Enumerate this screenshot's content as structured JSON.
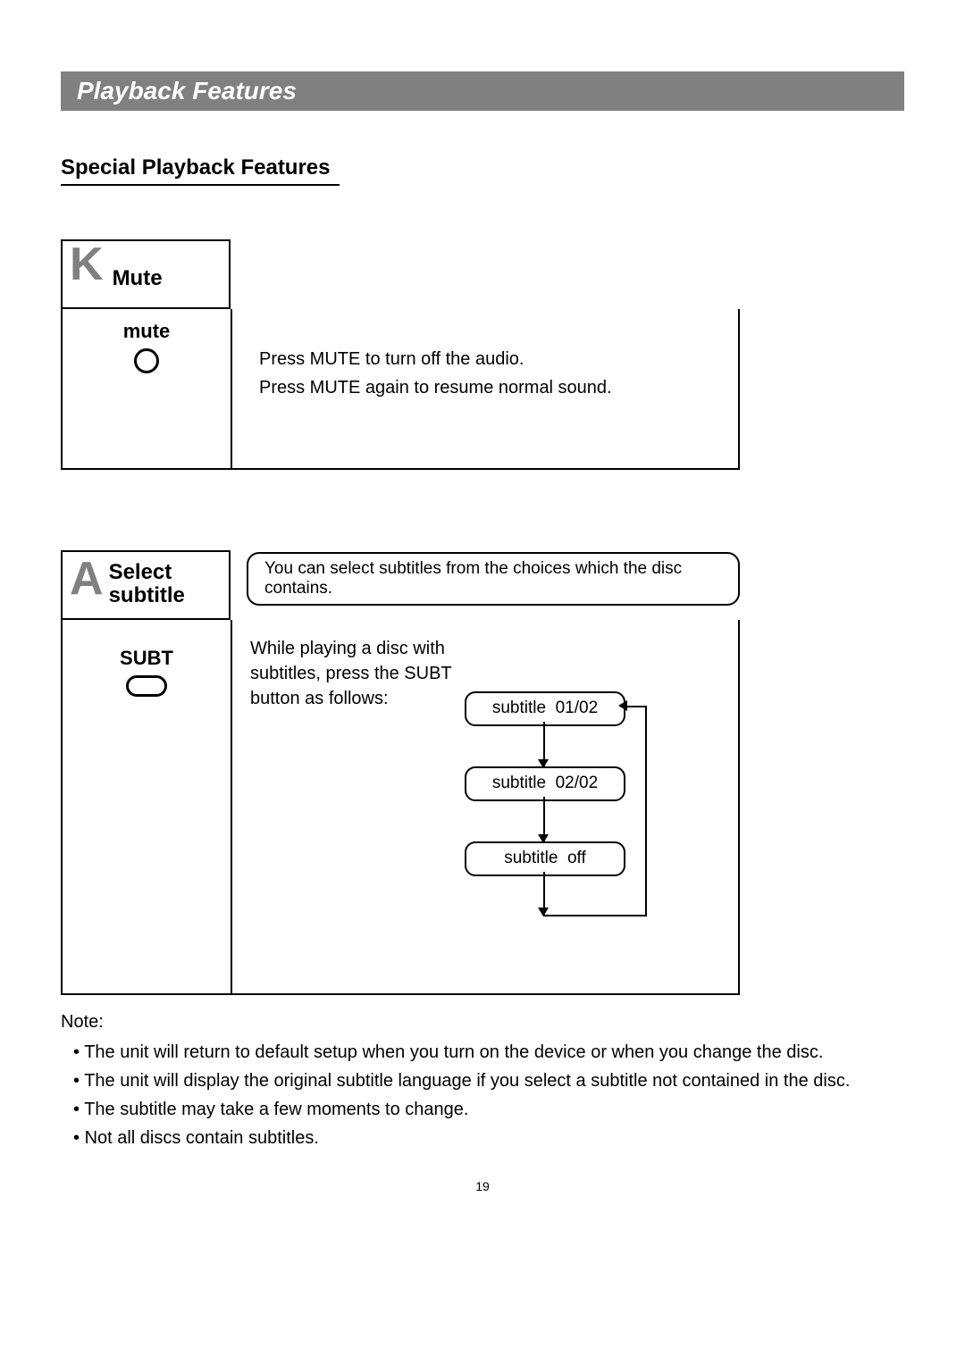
{
  "header_title": "Playback Features",
  "subheading": "Special Playback Features",
  "section_k": {
    "letter": "K",
    "title": "Mute",
    "button_label": "mute",
    "desc_line1": "Press MUTE to turn off the audio.",
    "desc_line2": "Press MUTE again to resume normal sound."
  },
  "section_a": {
    "letter": "A",
    "title_line1": "Select",
    "title_line2": "subtitle",
    "header_desc": "You can select subtitles from the choices which the disc contains.",
    "button_label": "SUBT",
    "instr": "While playing a disc with subtitles, press the SUBT button as follows:",
    "flow": {
      "box1": "subtitle  01/02",
      "box2": "subtitle  02/02",
      "box3": "subtitle  off"
    }
  },
  "notes": {
    "label": "Note:",
    "items": [
      "The unit will return to default setup when you turn on the device or when you change the disc.",
      "The unit will display the original subtitle language if you select a subtitle not contained in the disc.",
      "The subtitle may take a few moments to change.",
      "Not all discs contain subtitles."
    ]
  },
  "page_number": "19",
  "colors": {
    "header_bg": "#808080",
    "header_text": "#ffffff",
    "letter_color": "#808080",
    "border": "#000000",
    "background": "#ffffff"
  }
}
